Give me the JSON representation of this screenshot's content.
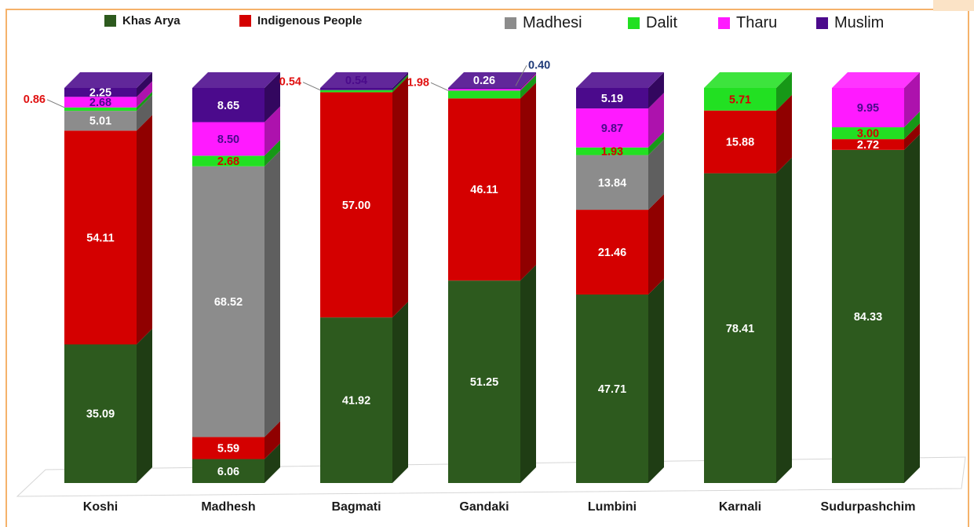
{
  "chart_data": {
    "type": "bar",
    "stacked": true,
    "style": "3d",
    "title": "",
    "xlabel": "",
    "ylabel": "",
    "ylim": [
      0,
      100
    ],
    "grid": false,
    "legend_position": "top",
    "categories": [
      "Koshi",
      "Madhesh",
      "Bagmati",
      "Gandaki",
      "Lumbini",
      "Karnali",
      "Sudurpashchim"
    ],
    "series": [
      {
        "name": "Khas Arya",
        "color": "#2d5a1e",
        "values": [
          35.09,
          6.06,
          41.92,
          51.25,
          47.71,
          78.41,
          84.33
        ]
      },
      {
        "name": "Indigenous People",
        "color": "#d40000",
        "values": [
          54.11,
          5.59,
          57.0,
          46.11,
          21.46,
          15.88,
          2.72
        ]
      },
      {
        "name": "Madhesi",
        "color": "#8c8c8c",
        "values": [
          5.01,
          68.52,
          0,
          0,
          13.84,
          0,
          0
        ]
      },
      {
        "name": "Dalit",
        "color": "#22e022",
        "values": [
          0.86,
          2.68,
          0.54,
          1.98,
          1.93,
          5.71,
          3.0
        ]
      },
      {
        "name": "Tharu",
        "color": "#ff1aff",
        "values": [
          2.68,
          8.5,
          0,
          0.4,
          9.87,
          0,
          9.95
        ]
      },
      {
        "name": "Muslim",
        "color": "#4b0a8c",
        "values": [
          2.25,
          8.65,
          0.54,
          0.26,
          5.19,
          0,
          0
        ]
      }
    ],
    "data_labels": [
      [
        {
          "series": 0,
          "text": "35.09",
          "color": "#ffffff"
        },
        {
          "series": 1,
          "text": "54.11",
          "color": "#ffffff"
        },
        {
          "series": 2,
          "text": "5.01",
          "color": "#ffffff"
        },
        {
          "series": 3,
          "text": "0.86",
          "color": "#e01010",
          "outside": "left"
        },
        {
          "series": 4,
          "text": "2.68",
          "color": "#4b0a8c"
        },
        {
          "series": 5,
          "text": "2.25",
          "color": "#ffffff"
        }
      ],
      [
        {
          "series": 0,
          "text": "6.06",
          "color": "#ffffff"
        },
        {
          "series": 1,
          "text": "5.59",
          "color": "#ffffff"
        },
        {
          "series": 2,
          "text": "68.52",
          "color": "#ffffff",
          "large": true
        },
        {
          "series": 3,
          "text": "2.68",
          "color": "#d40000"
        },
        {
          "series": 4,
          "text": "8.50",
          "color": "#4b0a8c"
        },
        {
          "series": 5,
          "text": "8.65",
          "color": "#ffffff"
        }
      ],
      [
        {
          "series": 0,
          "text": "41.92",
          "color": "#ffffff",
          "large": true
        },
        {
          "series": 1,
          "text": "57.00",
          "color": "#ffffff"
        },
        {
          "series": 3,
          "text": "0.54",
          "color": "#e01010",
          "outside": "left"
        },
        {
          "series": 5,
          "text": "0.54",
          "color": "#4b0a8c",
          "top": true
        }
      ],
      [
        {
          "series": 0,
          "text": "51.25",
          "color": "#ffffff"
        },
        {
          "series": 1,
          "text": "46.11",
          "color": "#ffffff"
        },
        {
          "series": 3,
          "text": "1.98",
          "color": "#e01010",
          "outside": "left"
        },
        {
          "series": 4,
          "text": "0.40",
          "color": "#1f3a78",
          "outside": "right"
        },
        {
          "series": 5,
          "text": "0.26",
          "color": "#ffffff",
          "top": true
        }
      ],
      [
        {
          "series": 0,
          "text": "47.71",
          "color": "#ffffff"
        },
        {
          "series": 1,
          "text": "21.46",
          "color": "#ffffff"
        },
        {
          "series": 2,
          "text": "13.84",
          "color": "#ffffff"
        },
        {
          "series": 3,
          "text": "1.93",
          "color": "#d40000"
        },
        {
          "series": 4,
          "text": "9.87",
          "color": "#4b0a8c"
        },
        {
          "series": 5,
          "text": "5.19",
          "color": "#ffffff"
        }
      ],
      [
        {
          "series": 0,
          "text": "78.41",
          "color": "#ffffff"
        },
        {
          "series": 1,
          "text": "15.88",
          "color": "#ffffff"
        },
        {
          "series": 3,
          "text": "5.71",
          "color": "#d40000"
        }
      ],
      [
        {
          "series": 0,
          "text": "84.33",
          "color": "#ffffff"
        },
        {
          "series": 1,
          "text": "2.72",
          "color": "#ffffff"
        },
        {
          "series": 3,
          "text": "3.00",
          "color": "#d40000"
        },
        {
          "series": 4,
          "text": "9.95",
          "color": "#4b0a8c"
        }
      ]
    ]
  }
}
